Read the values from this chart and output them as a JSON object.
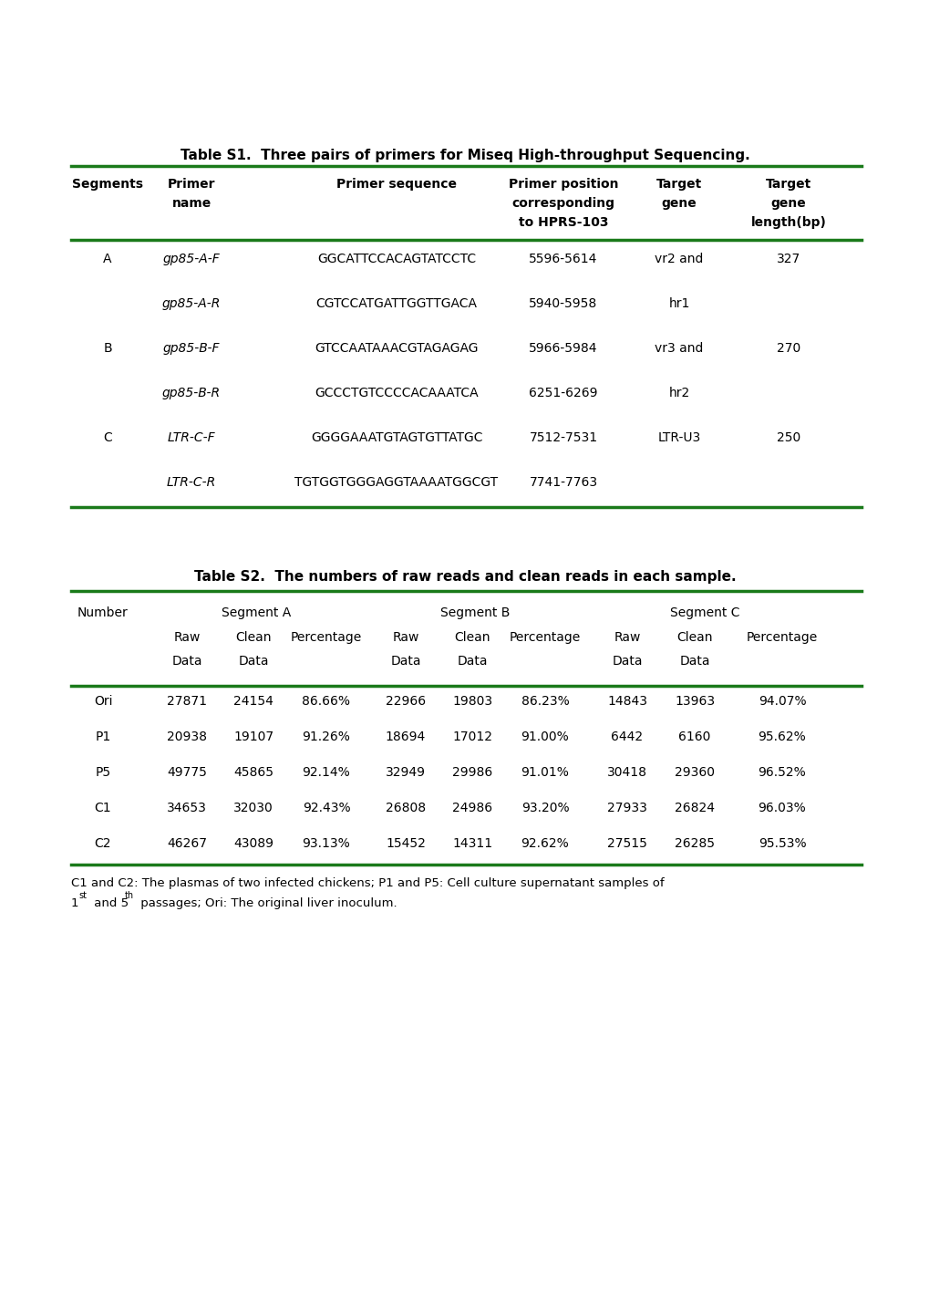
{
  "table1_title": "Table S1.  Three pairs of primers for Miseq High-throughput Sequencing.",
  "table2_title": "Table S2.  The numbers of raw reads and clean reads in each sample.",
  "table1_data": [
    [
      "A",
      "gp85-A-F",
      "GGCATTCCACAGTATCCTC",
      "5596-5614",
      "vr2 and",
      "327"
    ],
    [
      "",
      "gp85-A-R",
      "CGTCCATGATTGGTTGACA",
      "5940-5958",
      "hr1",
      ""
    ],
    [
      "B",
      "gp85-B-F",
      "GTCCAATAAACGTAGAGAG",
      "5966-5984",
      "vr3 and",
      "270"
    ],
    [
      "",
      "gp85-B-R",
      "GCCCTGTCCCCACAAATCA",
      "6251-6269",
      "hr2",
      ""
    ],
    [
      "C",
      "LTR-C-F",
      "GGGGAAATGTAGTGTTATGC",
      "7512-7531",
      "LTR-U3",
      "250"
    ],
    [
      "",
      "LTR-C-R",
      "TGTGGTGGGAGGTAAAATGGCGT",
      "7741-7763",
      "",
      ""
    ]
  ],
  "table2_data": [
    [
      "Ori",
      "27871",
      "24154",
      "86.66%",
      "22966",
      "19803",
      "86.23%",
      "14843",
      "13963",
      "94.07%"
    ],
    [
      "P1",
      "20938",
      "19107",
      "91.26%",
      "18694",
      "17012",
      "91.00%",
      "6442",
      "6160",
      "95.62%"
    ],
    [
      "P5",
      "49775",
      "45865",
      "92.14%",
      "32949",
      "29986",
      "91.01%",
      "30418",
      "29360",
      "96.52%"
    ],
    [
      "C1",
      "34653",
      "32030",
      "92.43%",
      "26808",
      "24986",
      "93.20%",
      "27933",
      "26824",
      "96.03%"
    ],
    [
      "C2",
      "46267",
      "43089",
      "93.13%",
      "15452",
      "14311",
      "92.62%",
      "27515",
      "26285",
      "95.53%"
    ]
  ],
  "footnote1": "C1 and C2: The plasmas of two infected chickens; P1 and P5: Cell culture supernatant samples of",
  "footnote2": "passages; Ori: The original liver inoculum.",
  "green": "#1a7a1a",
  "black": "#000000",
  "white": "#ffffff",
  "fig_w": 10.2,
  "fig_h": 14.43,
  "dpi": 100
}
